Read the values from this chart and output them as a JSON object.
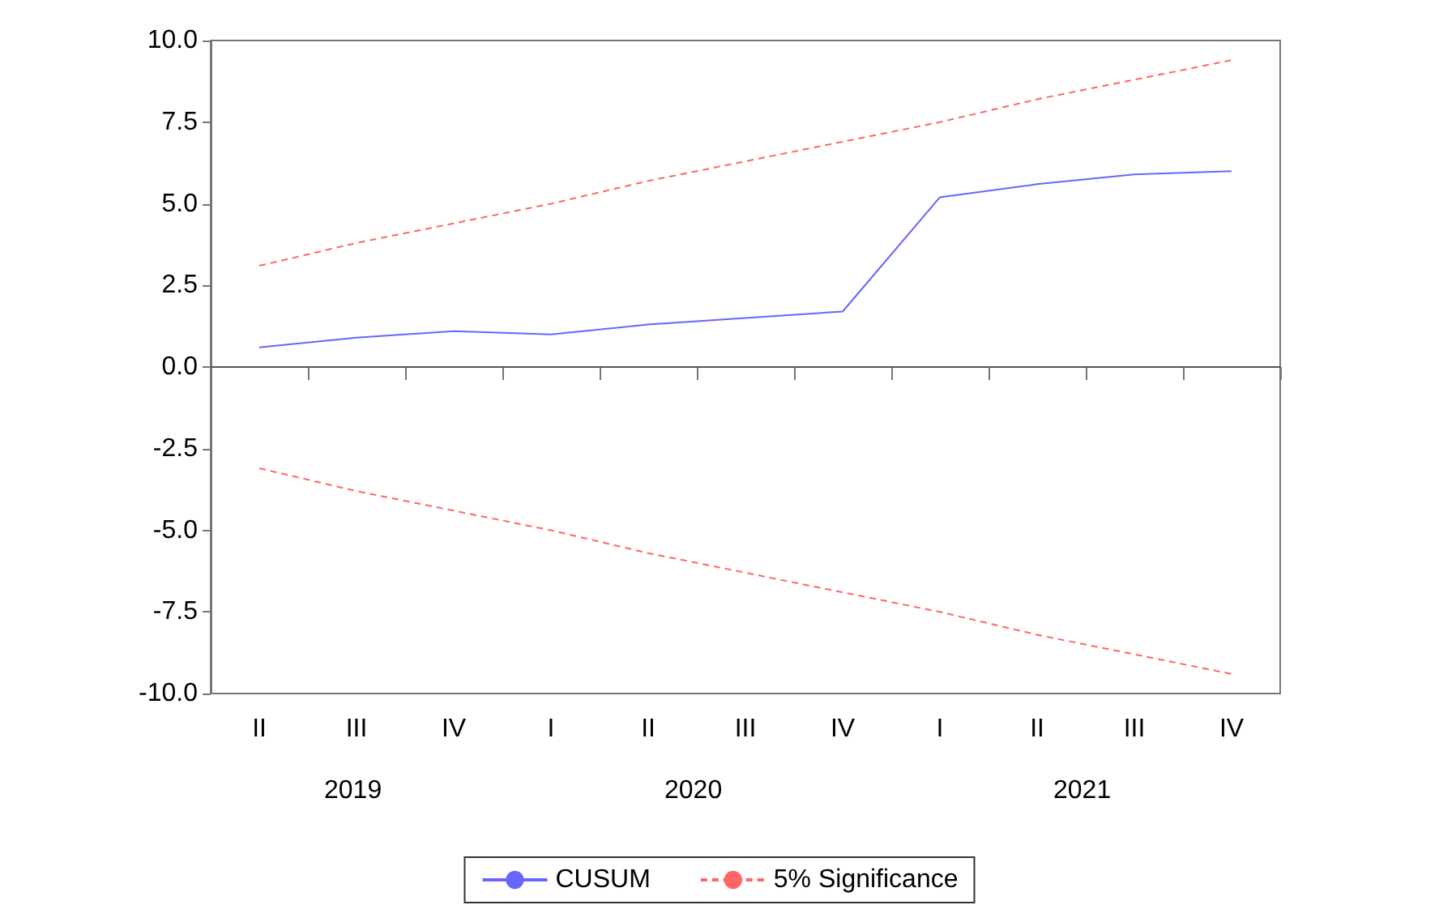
{
  "chart_data": {
    "type": "line",
    "categories": [
      "II",
      "III",
      "IV",
      "I",
      "II",
      "III",
      "IV",
      "I",
      "II",
      "III",
      "IV"
    ],
    "series": [
      {
        "name": "CUSUM",
        "color": "#6666ff",
        "line_style": "solid",
        "values": [
          0.6,
          0.9,
          1.1,
          1.0,
          1.3,
          1.5,
          1.7,
          5.2,
          5.6,
          5.9,
          6.0
        ]
      },
      {
        "name": "5% Significance",
        "color": "#ff6666",
        "line_style": "dashed",
        "values": [
          3.1,
          3.8,
          4.4,
          5.0,
          5.7,
          6.3,
          6.9,
          7.5,
          8.2,
          8.8,
          9.4
        ]
      },
      {
        "color": "#ff6666",
        "line_style": "dashed",
        "values": [
          -3.1,
          -3.8,
          -4.4,
          -5.0,
          -5.7,
          -6.3,
          -6.9,
          -7.5,
          -8.2,
          -8.8,
          -9.4
        ]
      }
    ],
    "ylim": [
      -10,
      10
    ],
    "yticks": [
      {
        "value": -10,
        "label": "-10.0"
      },
      {
        "value": -7.5,
        "label": "-7.5"
      },
      {
        "value": -5,
        "label": "-5.0"
      },
      {
        "value": -2.5,
        "label": "-2.5"
      },
      {
        "value": 0,
        "label": "0.0"
      },
      {
        "value": 2.5,
        "label": "2.5"
      },
      {
        "value": 5,
        "label": "5.0"
      },
      {
        "value": 7.5,
        "label": "7.5"
      },
      {
        "value": 10,
        "label": "10.0"
      }
    ],
    "ref_lines": [
      {
        "axis": "y",
        "value": 0,
        "color": "#555555",
        "line_style": "solid"
      }
    ],
    "annotations": [
      "2019",
      "2020",
      "2021"
    ],
    "grid": false,
    "legend": "bottom",
    "marker": "none"
  }
}
